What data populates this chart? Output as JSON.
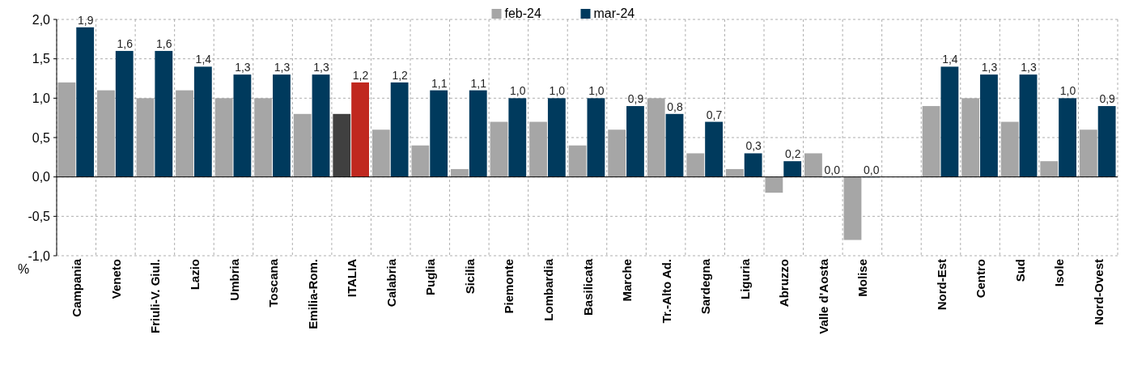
{
  "chart_data": {
    "type": "bar",
    "ylabel": "%",
    "categories": [
      "Campania",
      "Veneto",
      "Friuli-V. Giul.",
      "Lazio",
      "Umbria",
      "Toscana",
      "Emilia-Rom.",
      "ITALIA",
      "Calabria",
      "Puglia",
      "Sicilia",
      "Piemonte",
      "Lombardia",
      "Basilicata",
      "Marche",
      "Tr.-Alto Ad.",
      "Sardegna",
      "Liguria",
      "Abruzzo",
      "Valle d'Aosta",
      "Molise",
      null,
      "Nord-Est",
      "Centro",
      "Sud",
      "Isole",
      "Nord-Ovest"
    ],
    "series": [
      {
        "name": "feb-24",
        "color": "#a6a6a6",
        "colors": [
          "#a6a6a6",
          "#a6a6a6",
          "#a6a6a6",
          "#a6a6a6",
          "#a6a6a6",
          "#a6a6a6",
          "#a6a6a6",
          "#404040",
          "#a6a6a6",
          "#a6a6a6",
          "#a6a6a6",
          "#a6a6a6",
          "#a6a6a6",
          "#a6a6a6",
          "#a6a6a6",
          "#a6a6a6",
          "#a6a6a6",
          "#a6a6a6",
          "#a6a6a6",
          "#a6a6a6",
          "#a6a6a6",
          null,
          "#a6a6a6",
          "#a6a6a6",
          "#a6a6a6",
          "#a6a6a6",
          "#a6a6a6"
        ],
        "values": [
          1.2,
          1.1,
          1.0,
          1.1,
          1.0,
          1.0,
          0.8,
          0.8,
          0.6,
          0.4,
          0.1,
          0.7,
          0.7,
          0.4,
          0.6,
          1.0,
          0.3,
          0.1,
          -0.2,
          0.3,
          -0.8,
          null,
          0.9,
          1.0,
          0.7,
          0.2,
          0.6
        ]
      },
      {
        "name": "mar-24",
        "color": "#003a5d",
        "colors": [
          "#003a5d",
          "#003a5d",
          "#003a5d",
          "#003a5d",
          "#003a5d",
          "#003a5d",
          "#003a5d",
          "#c0281f",
          "#003a5d",
          "#003a5d",
          "#003a5d",
          "#003a5d",
          "#003a5d",
          "#003a5d",
          "#003a5d",
          "#003a5d",
          "#003a5d",
          "#003a5d",
          "#003a5d",
          "#003a5d",
          "#003a5d",
          null,
          "#003a5d",
          "#003a5d",
          "#003a5d",
          "#003a5d",
          "#003a5d"
        ],
        "values": [
          1.9,
          1.6,
          1.6,
          1.4,
          1.3,
          1.3,
          1.3,
          1.2,
          1.2,
          1.1,
          1.1,
          1.0,
          1.0,
          1.0,
          0.9,
          0.8,
          0.7,
          0.3,
          0.2,
          0.0,
          0.0,
          null,
          1.4,
          1.3,
          1.3,
          1.0,
          0.9
        ],
        "value_labels": [
          "1,9",
          "1,6",
          "1,6",
          "1,4",
          "1,3",
          "1,3",
          "1,3",
          "1,2",
          "1,2",
          "1,1",
          "1,1",
          "1,0",
          "1,0",
          "1,0",
          "0,9",
          "0,8",
          "0,7",
          "0,3",
          "0,2",
          "0,0",
          "0,0",
          null,
          "1,4",
          "1,3",
          "1,3",
          "1,0",
          "0,9"
        ]
      }
    ],
    "ylim": [
      -1.0,
      2.0
    ],
    "yticks": [
      {
        "value": -1.0,
        "label": "-1,0"
      },
      {
        "value": -0.5,
        "label": "-0,5"
      },
      {
        "value": 0,
        "label": "0,0"
      },
      {
        "value": 0.5,
        "label": "0,5"
      },
      {
        "value": 1.0,
        "label": "1,0"
      },
      {
        "value": 1.5,
        "label": "1,5"
      },
      {
        "value": 2.0,
        "label": "2,0"
      }
    ],
    "grid": true,
    "legend": "top"
  }
}
